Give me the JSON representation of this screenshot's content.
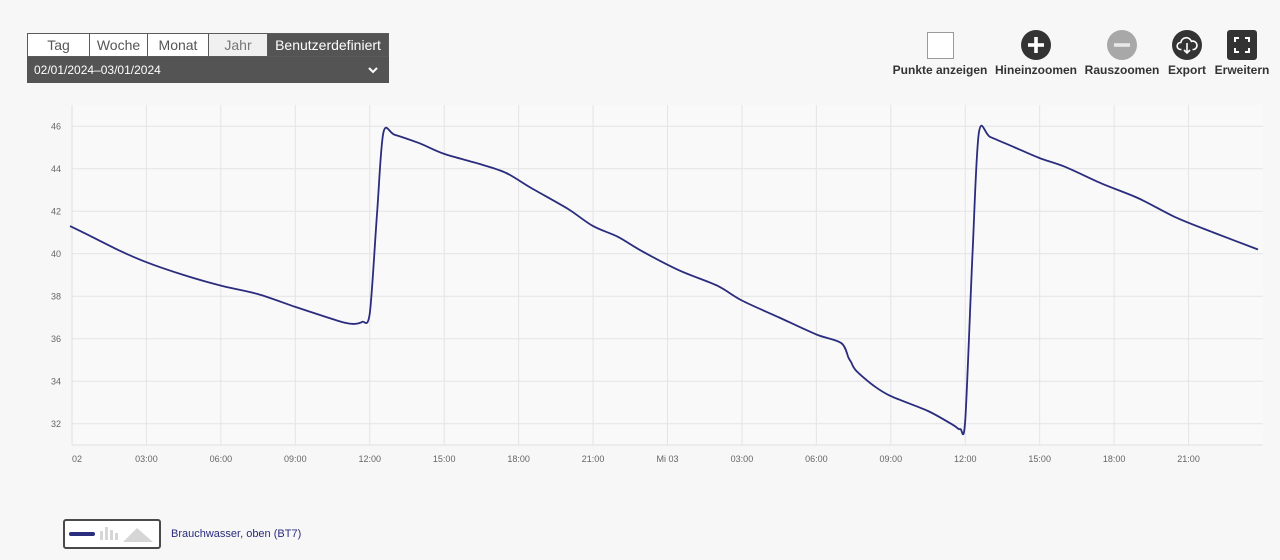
{
  "period": {
    "tabs": [
      "Tag",
      "Woche",
      "Monat",
      "Jahr",
      "Benutzerdefiniert"
    ],
    "active_index": 4,
    "date_range": "02/01/2024–03/01/2024"
  },
  "toolbar": {
    "show_points": "Punkte anzeigen",
    "zoom_in": "Hineinzoomen",
    "zoom_out": "Rauszoomen",
    "export": "Export",
    "expand": "Erweitern"
  },
  "colors": {
    "series": "#2a2c7d",
    "grid": "#e4e4e4",
    "zoom_out_disabled": "#a8a8a8"
  },
  "chart_data": {
    "type": "line",
    "x_unit": "hours since 02/01/2024 00:00",
    "xlim": [
      0,
      48
    ],
    "ylim": [
      31,
      47
    ],
    "y_ticks": [
      32,
      34,
      36,
      38,
      40,
      42,
      44,
      46
    ],
    "x_ticks": [
      {
        "x": 0,
        "label": "02"
      },
      {
        "x": 3,
        "label": "03:00"
      },
      {
        "x": 6,
        "label": "06:00"
      },
      {
        "x": 9,
        "label": "09:00"
      },
      {
        "x": 12,
        "label": "12:00"
      },
      {
        "x": 15,
        "label": "15:00"
      },
      {
        "x": 18,
        "label": "18:00"
      },
      {
        "x": 21,
        "label": "21:00"
      },
      {
        "x": 24,
        "label": "Mi 03"
      },
      {
        "x": 27,
        "label": "03:00"
      },
      {
        "x": 30,
        "label": "06:00"
      },
      {
        "x": 33,
        "label": "09:00"
      },
      {
        "x": 36,
        "label": "12:00"
      },
      {
        "x": 39,
        "label": "15:00"
      },
      {
        "x": 42,
        "label": "18:00"
      },
      {
        "x": 45,
        "label": "21:00"
      }
    ],
    "grid": true,
    "series": [
      {
        "name": "Brauchwasser, oben (BT7)",
        "x": [
          -0.1,
          0.8,
          2,
          3,
          4.5,
          6,
          7.5,
          9,
          10.3,
          11,
          11.4,
          11.7,
          12,
          12.3,
          12.55,
          13,
          14,
          15,
          16.5,
          17.5,
          18.5,
          20,
          21,
          22,
          23,
          24.5,
          26,
          27,
          28.5,
          30,
          31,
          31.3,
          31.4,
          31.6,
          32.3,
          33,
          34.5,
          35.5,
          35.8,
          36,
          36.3,
          36.55,
          37,
          38,
          39,
          40,
          41.5,
          43,
          44.5,
          46,
          47.8
        ],
        "y": [
          41.3,
          40.8,
          40.1,
          39.6,
          39.0,
          38.5,
          38.1,
          37.5,
          37.0,
          36.75,
          36.7,
          36.8,
          37.2,
          42.0,
          45.7,
          45.6,
          45.2,
          44.7,
          44.2,
          43.8,
          43.1,
          42.1,
          41.3,
          40.8,
          40.1,
          39.2,
          38.5,
          37.8,
          37.0,
          36.2,
          35.8,
          35.1,
          34.9,
          34.5,
          33.8,
          33.3,
          32.6,
          31.95,
          31.75,
          32.2,
          40.2,
          45.7,
          45.5,
          45.0,
          44.5,
          44.1,
          43.3,
          42.6,
          41.7,
          41.0,
          40.2
        ]
      }
    ]
  }
}
